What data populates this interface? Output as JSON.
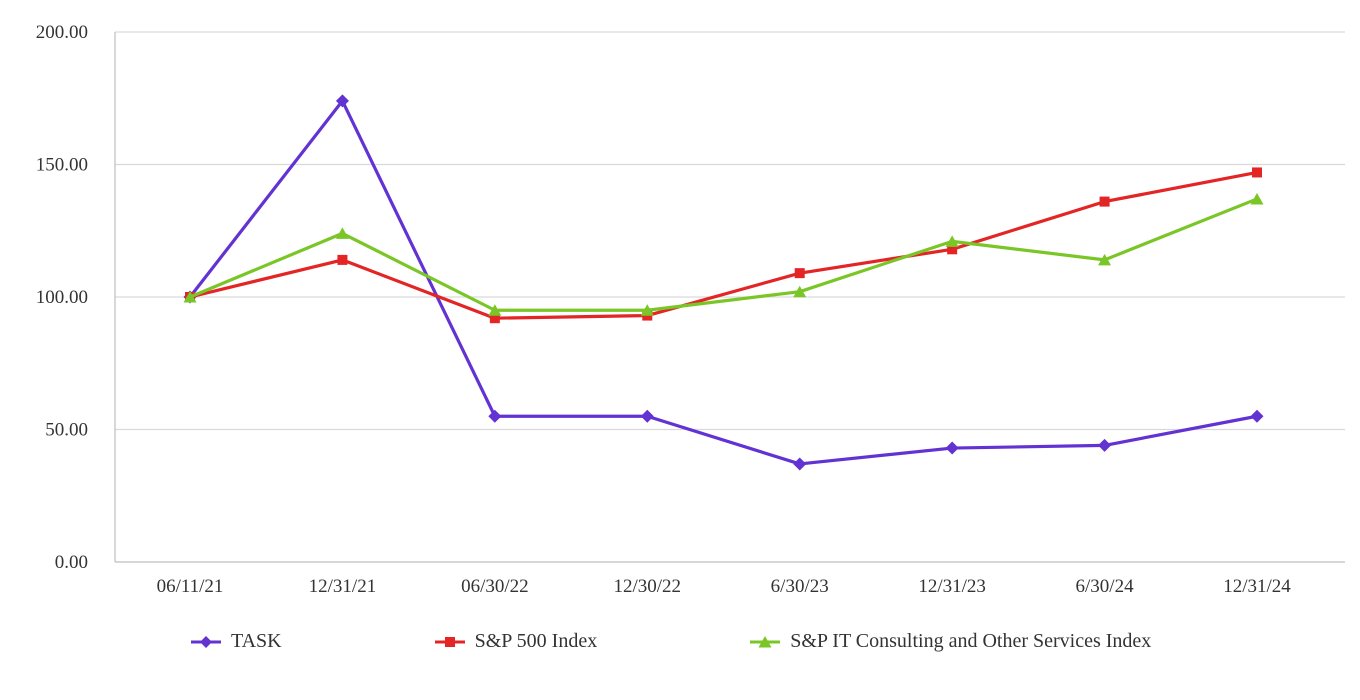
{
  "chart_data": {
    "type": "line",
    "title": "",
    "xlabel": "",
    "ylabel": "",
    "x": [
      "06/11/21",
      "12/31/21",
      "06/30/22",
      "12/30/22",
      "6/30/23",
      "12/31/23",
      "6/30/24",
      "12/31/24"
    ],
    "series": [
      {
        "name": "TASK",
        "marker": "diamond",
        "color": "#6233D2",
        "values": [
          100.0,
          174.0,
          55.0,
          55.0,
          37.0,
          43.0,
          44.0,
          55.0
        ]
      },
      {
        "name": "S&P 500 Index",
        "marker": "square",
        "color": "#E32526",
        "values": [
          100.0,
          114.0,
          92.0,
          93.0,
          109.0,
          118.0,
          136.0,
          147.0
        ]
      },
      {
        "name": "S&P IT Consulting and Other Services Index",
        "marker": "triangle",
        "color": "#7AC627",
        "values": [
          100.0,
          124.0,
          95.0,
          95.0,
          102.0,
          121.0,
          114.0,
          137.0
        ]
      }
    ],
    "ylim": [
      0,
      200
    ],
    "ytick_step": 50,
    "ytick_labels": [
      "0.00",
      "50.00",
      "100.00",
      "150.00",
      "200.00"
    ],
    "grid": true,
    "legend_position": "bottom",
    "colors": {
      "gridline": "#D9D9D9",
      "axis": "#BFBFBF",
      "text": "#333333",
      "background": "#FFFFFF"
    }
  }
}
